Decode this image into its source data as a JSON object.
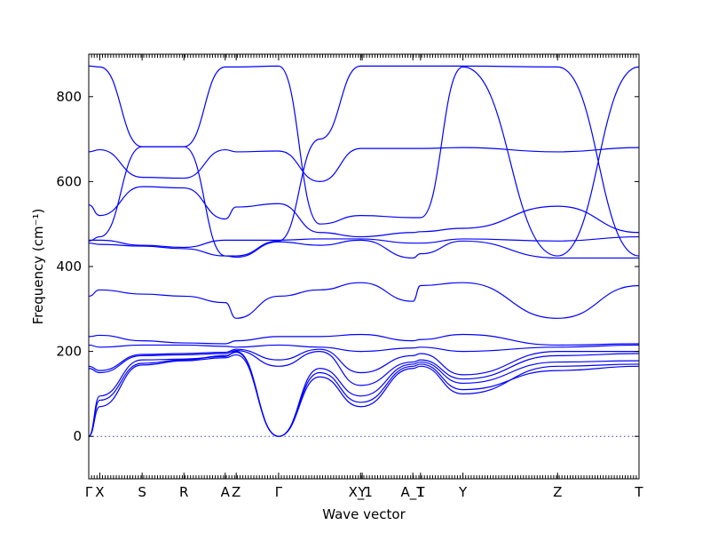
{
  "chart_data": {
    "type": "line",
    "xlabel": "Wave vector",
    "ylabel": "Frequency (cm⁻¹)",
    "ylim": [
      -100,
      900
    ],
    "xlim": [
      0,
      1
    ],
    "grid": false,
    "yticks": [
      0,
      200,
      400,
      600,
      800
    ],
    "high_symmetry_points": [
      {
        "label": "Γ",
        "x": 0.0
      },
      {
        "label": "X",
        "x": 0.02
      },
      {
        "label": "S",
        "x": 0.097
      },
      {
        "label": "R",
        "x": 0.173
      },
      {
        "label": "A",
        "x": 0.248
      },
      {
        "label": "Z",
        "x": 0.268
      },
      {
        "label": "Γ",
        "x": 0.345
      },
      {
        "label": "X_1",
        "x": 0.494
      },
      {
        "label": "Y",
        "x": 0.497
      },
      {
        "label": "A_1",
        "x": 0.589
      },
      {
        "label": "T",
        "x": 0.603
      },
      {
        "label": "Y",
        "x": 0.68
      },
      {
        "label": "Z",
        "x": 0.852
      },
      {
        "label": "T",
        "x": 1.0
      }
    ],
    "series": [
      {
        "x": [
          0,
          0.02,
          0.097,
          0.173,
          0.248,
          0.268,
          0.345,
          0.42,
          0.494,
          0.589,
          0.603,
          0.68,
          0.852,
          1.0
        ],
        "y": [
          0,
          85,
          172,
          180,
          190,
          198,
          0,
          150,
          80,
          165,
          170,
          110,
          155,
          165
        ]
      },
      {
        "x": [
          0,
          0.02,
          0.097,
          0.173,
          0.248,
          0.268,
          0.345,
          0.42,
          0.494,
          0.589,
          0.603,
          0.68,
          0.852,
          1.0
        ],
        "y": [
          0,
          70,
          168,
          178,
          185,
          192,
          0,
          140,
          70,
          160,
          165,
          100,
          165,
          170
        ]
      },
      {
        "x": [
          0,
          0.02,
          0.097,
          0.173,
          0.248,
          0.268,
          0.345,
          0.42,
          0.494,
          0.589,
          0.603,
          0.68,
          0.852,
          1.0
        ],
        "y": [
          0,
          95,
          180,
          182,
          188,
          200,
          0,
          160,
          95,
          170,
          175,
          125,
          175,
          178
        ]
      },
      {
        "x": [
          0,
          0.02,
          0.097,
          0.173,
          0.248,
          0.268,
          0.345,
          0.42,
          0.494,
          0.589,
          0.603,
          0.68,
          0.852,
          1.0
        ],
        "y": [
          160,
          150,
          190,
          192,
          195,
          202,
          165,
          200,
          120,
          175,
          180,
          135,
          190,
          195
        ]
      },
      {
        "x": [
          0,
          0.02,
          0.097,
          0.173,
          0.248,
          0.268,
          0.345,
          0.42,
          0.494,
          0.589,
          0.603,
          0.68,
          0.852,
          1.0
        ],
        "y": [
          165,
          155,
          193,
          195,
          198,
          205,
          180,
          205,
          150,
          190,
          195,
          145,
          200,
          200
        ]
      },
      {
        "x": [
          0,
          0.02,
          0.097,
          0.173,
          0.248,
          0.268,
          0.345,
          0.42,
          0.494,
          0.589,
          0.603,
          0.68,
          0.852,
          1.0
        ],
        "y": [
          215,
          210,
          215,
          215,
          212,
          210,
          215,
          210,
          200,
          208,
          210,
          200,
          210,
          215
        ]
      },
      {
        "x": [
          0,
          0.02,
          0.097,
          0.173,
          0.248,
          0.268,
          0.345,
          0.42,
          0.494,
          0.589,
          0.603,
          0.68,
          0.852,
          1.0
        ],
        "y": [
          235,
          238,
          225,
          220,
          218,
          225,
          235,
          235,
          240,
          225,
          228,
          240,
          215,
          218
        ]
      },
      {
        "x": [
          0,
          0.02,
          0.097,
          0.173,
          0.248,
          0.268,
          0.345,
          0.42,
          0.494,
          0.589,
          0.603,
          0.68,
          0.852,
          1.0
        ],
        "y": [
          330,
          345,
          335,
          330,
          315,
          278,
          330,
          345,
          362,
          318,
          355,
          362,
          278,
          355
        ]
      },
      {
        "x": [
          0,
          0.02,
          0.097,
          0.173,
          0.248,
          0.268,
          0.345,
          0.42,
          0.494,
          0.589,
          0.603,
          0.68,
          0.852,
          1.0
        ],
        "y": [
          455,
          452,
          448,
          442,
          425,
          422,
          458,
          450,
          462,
          420,
          430,
          460,
          420,
          420
        ]
      },
      {
        "x": [
          0,
          0.02,
          0.097,
          0.173,
          0.248,
          0.268,
          0.345,
          0.42,
          0.494,
          0.589,
          0.603,
          0.68,
          0.852,
          1.0
        ],
        "y": [
          462,
          462,
          450,
          445,
          462,
          462,
          462,
          465,
          465,
          455,
          455,
          465,
          460,
          470
        ]
      },
      {
        "x": [
          0,
          0.02,
          0.097,
          0.173,
          0.248,
          0.268,
          0.345,
          0.42,
          0.494,
          0.589,
          0.603,
          0.68,
          0.852,
          1.0
        ],
        "y": [
          545,
          520,
          588,
          585,
          512,
          540,
          548,
          480,
          470,
          480,
          482,
          490,
          542,
          480
        ]
      },
      {
        "x": [
          0,
          0.02,
          0.097,
          0.173,
          0.248,
          0.268,
          0.345,
          0.42,
          0.494,
          0.589,
          0.603,
          0.68,
          0.852,
          1.0
        ],
        "y": [
          670,
          675,
          610,
          608,
          675,
          670,
          672,
          600,
          678,
          678,
          678,
          680,
          670,
          680
        ]
      },
      {
        "x": [
          0,
          0.02,
          0.097,
          0.173,
          0.248,
          0.268,
          0.345,
          0.42,
          0.494,
          0.589,
          0.603,
          0.68,
          0.852,
          1.0
        ],
        "y": [
          872,
          870,
          682,
          682,
          870,
          870,
          872,
          500,
          520,
          515,
          515,
          870,
          425,
          870
        ]
      },
      {
        "x": [
          0,
          0.02,
          0.097,
          0.173,
          0.248,
          0.268,
          0.345,
          0.42,
          0.494,
          0.589,
          0.603,
          0.68,
          0.852,
          1.0
        ],
        "y": [
          460,
          470,
          682,
          682,
          425,
          425,
          460,
          700,
          872,
          872,
          872,
          872,
          870,
          425
        ]
      }
    ]
  }
}
